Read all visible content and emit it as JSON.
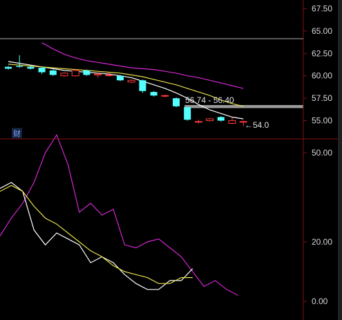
{
  "chart_data": [
    {
      "type": "candlestick",
      "ylim": [
        53.5,
        68.0
      ],
      "y_ticks": [
        55.0,
        57.5,
        60.0,
        62.5,
        65.0,
        67.5
      ],
      "y_tick_labels": [
        "55.00",
        "57.50",
        "60.00",
        "62.50",
        "65.00",
        "67.50"
      ],
      "candles": [
        {
          "o": 61.0,
          "c": 60.8,
          "h": 61.1,
          "l": 60.7
        },
        {
          "o": 61.1,
          "c": 61.0,
          "h": 62.3,
          "l": 60.9
        },
        {
          "o": 61.0,
          "c": 60.8,
          "h": 61.1,
          "l": 60.7
        },
        {
          "o": 60.9,
          "c": 60.4,
          "h": 61.0,
          "l": 60.2
        },
        {
          "o": 60.6,
          "c": 60.1,
          "h": 60.7,
          "l": 60.0
        },
        {
          "o": 60.0,
          "c": 60.3,
          "h": 60.4,
          "l": 59.9
        },
        {
          "o": 60.0,
          "c": 60.6,
          "h": 60.8,
          "l": 59.9
        },
        {
          "o": 60.6,
          "c": 60.1,
          "h": 60.7,
          "l": 60.0
        },
        {
          "o": 60.1,
          "c": 60.2,
          "h": 60.3,
          "l": 59.8
        },
        {
          "o": 60.1,
          "c": 60.1,
          "h": 60.4,
          "l": 59.9
        },
        {
          "o": 60.0,
          "c": 59.5,
          "h": 60.1,
          "l": 59.4
        },
        {
          "o": 59.3,
          "c": 59.5,
          "h": 59.6,
          "l": 59.2
        },
        {
          "o": 59.5,
          "c": 58.3,
          "h": 59.6,
          "l": 58.1
        },
        {
          "o": 58.2,
          "c": 57.8,
          "h": 58.3,
          "l": 57.7
        },
        {
          "o": 57.8,
          "c": 57.8,
          "h": 57.9,
          "l": 57.6
        },
        {
          "o": 57.5,
          "c": 56.6,
          "h": 57.6,
          "l": 56.5
        },
        {
          "o": 56.5,
          "c": 55.1,
          "h": 56.5,
          "l": 55.0
        },
        {
          "o": 54.9,
          "c": 54.9,
          "h": 55.1,
          "l": 54.7
        },
        {
          "o": 55.0,
          "c": 55.2,
          "h": 55.3,
          "l": 54.9
        },
        {
          "o": 55.4,
          "c": 55.0,
          "h": 55.5,
          "l": 54.9
        },
        {
          "o": 54.7,
          "c": 55.0,
          "h": 55.4,
          "l": 54.6
        },
        {
          "o": 54.9,
          "c": 54.9,
          "h": 55.0,
          "l": 54.4
        }
      ],
      "ma_series": [
        {
          "color": "#ffffff",
          "values": [
            61.6,
            61.4,
            61.2,
            61.0,
            60.8,
            60.6,
            60.5,
            60.4,
            60.3,
            60.2,
            60.0,
            59.8,
            59.4,
            59.0,
            58.6,
            58.1,
            57.5,
            56.8,
            56.2,
            55.8,
            55.4,
            55.2
          ]
        },
        {
          "color": "#e6e04a",
          "values": [
            61.3,
            61.2,
            61.1,
            61.0,
            60.9,
            60.8,
            60.7,
            60.6,
            60.5,
            60.4,
            60.3,
            60.1,
            59.9,
            59.6,
            59.3,
            59.0,
            58.6,
            58.2,
            57.8,
            57.3,
            56.9,
            56.6
          ]
        },
        {
          "color": "#d428d4",
          "values": [
            null,
            null,
            null,
            63.7,
            63.0,
            62.4,
            62.0,
            61.7,
            61.5,
            61.3,
            61.1,
            60.9,
            60.8,
            60.7,
            60.5,
            60.3,
            60.0,
            59.8,
            59.5,
            59.2,
            58.9,
            58.6
          ]
        }
      ],
      "annotations": [
        {
          "text": "56.74 - 56.40"
        },
        {
          "text": "←54.0"
        }
      ],
      "icon_label": "财"
    },
    {
      "type": "line",
      "ylim": [
        0,
        52
      ],
      "y_ticks": [
        0,
        20,
        50
      ],
      "y_tick_labels": [
        "0.00",
        "20.00",
        "50.00"
      ],
      "series": [
        {
          "color": "#d428d4",
          "values": [
            22,
            28,
            33,
            40,
            50,
            56,
            46,
            30,
            33,
            29,
            31,
            19,
            18,
            20,
            21,
            18,
            15,
            10,
            5,
            7,
            4,
            2
          ]
        },
        {
          "color": "#ffffff",
          "values": [
            38,
            40,
            37,
            24,
            19,
            23,
            21,
            19,
            13,
            15,
            13,
            9,
            6,
            4,
            4,
            7,
            7,
            11
          ]
        },
        {
          "color": "#e6e04a",
          "values": [
            37,
            39,
            37,
            32,
            28,
            26,
            23,
            20,
            17,
            15,
            12,
            10,
            9,
            8,
            6,
            6,
            8,
            8
          ]
        }
      ]
    }
  ]
}
